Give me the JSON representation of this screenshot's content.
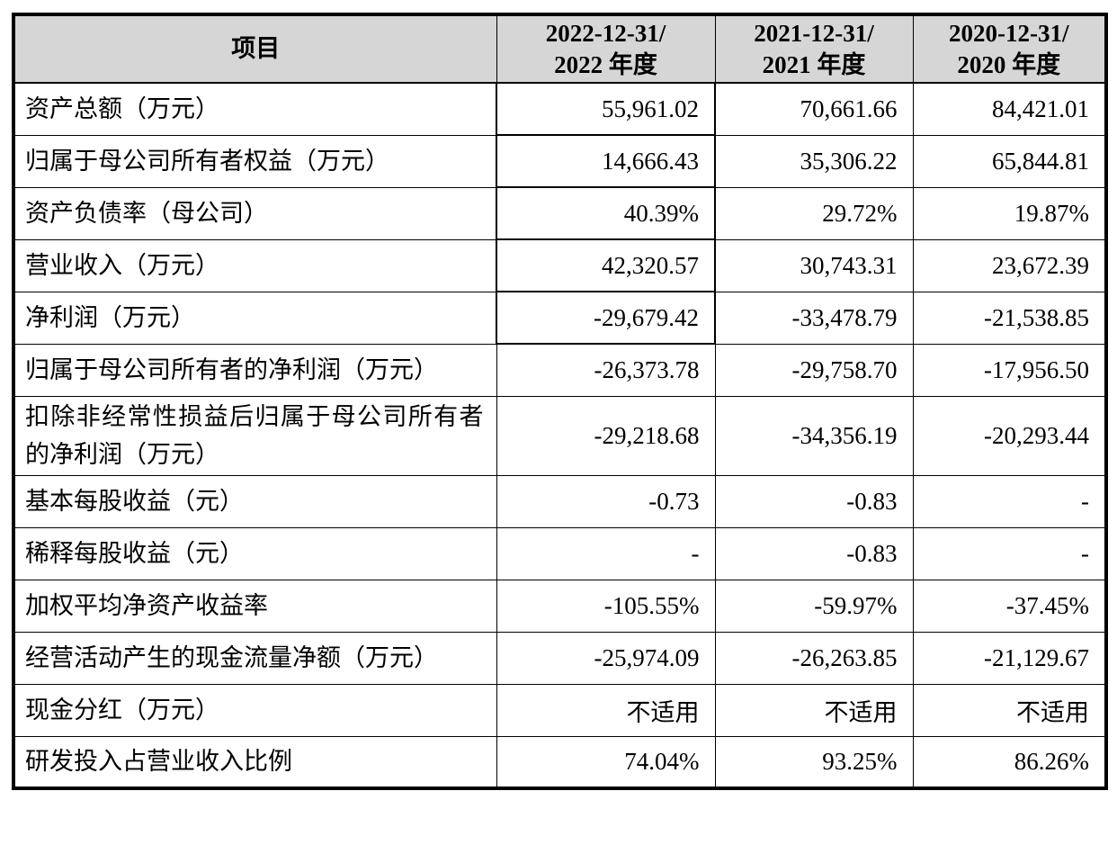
{
  "table": {
    "header": {
      "item": "项目",
      "col_2022": "2022-12-31/\n2022 年度",
      "col_2021": "2021-12-31/\n2021 年度",
      "col_2020": "2020-12-31/\n2020 年度"
    },
    "rows": [
      {
        "label": "资产总额（万元）",
        "values": [
          "55,961.02",
          "70,661.66",
          "84,421.01"
        ]
      },
      {
        "label": "归属于母公司所有者权益（万元）",
        "values": [
          "14,666.43",
          "35,306.22",
          "65,844.81"
        ]
      },
      {
        "label": "资产负债率（母公司）",
        "values": [
          "40.39%",
          "29.72%",
          "19.87%"
        ]
      },
      {
        "label": "营业收入（万元）",
        "values": [
          "42,320.57",
          "30,743.31",
          "23,672.39"
        ]
      },
      {
        "label": "净利润（万元）",
        "values": [
          "-29,679.42",
          "-33,478.79",
          "-21,538.85"
        ]
      },
      {
        "label": "归属于母公司所有者的净利润（万元）",
        "values": [
          "-26,373.78",
          "-29,758.70",
          "-17,956.50"
        ]
      },
      {
        "label": "扣除非经常性损益后归属于母公司所有者的净利润（万元）",
        "values": [
          "-29,218.68",
          "-34,356.19",
          "-20,293.44"
        ]
      },
      {
        "label": "基本每股收益（元）",
        "values": [
          "-0.73",
          "-0.83",
          "-"
        ]
      },
      {
        "label": "稀释每股收益（元）",
        "values": [
          "-",
          "-0.83",
          "-"
        ]
      },
      {
        "label": "加权平均净资产收益率",
        "values": [
          "-105.55%",
          "-59.97%",
          "-37.45%"
        ]
      },
      {
        "label": "经营活动产生的现金流量净额（万元）",
        "values": [
          "-25,974.09",
          "-26,263.85",
          "-21,129.67"
        ]
      },
      {
        "label": "现金分红（万元）",
        "values": [
          "不适用",
          "不适用",
          "不适用"
        ]
      },
      {
        "label": "研发投入占营业收入比例",
        "values": [
          "74.04%",
          "93.25%",
          "86.26%"
        ]
      }
    ],
    "colors": {
      "header_background": "#d6d6d6",
      "border": "#000000",
      "text": "#000000"
    }
  }
}
